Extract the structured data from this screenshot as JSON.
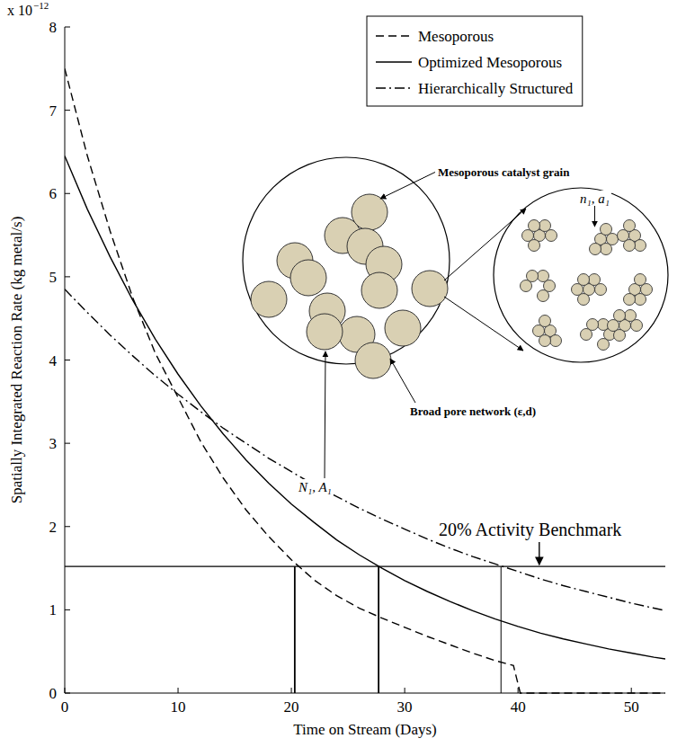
{
  "chart_data": {
    "type": "line",
    "x_label": "Time on Stream (Days)",
    "y_label": "Spatially Integrated Reaction Rate (kg metal/s)",
    "y_multiplier": {
      "base": "x 10",
      "exponent": "−12"
    },
    "xlim": [
      0,
      53
    ],
    "ylim": [
      0,
      8
    ],
    "xticks": [
      0,
      10,
      20,
      30,
      40,
      50
    ],
    "yticks": [
      0,
      1,
      2,
      3,
      4,
      5,
      6,
      7,
      8
    ],
    "grid": false,
    "legend": "upper right",
    "series": [
      {
        "name": "Mesoporous",
        "color": "#000000",
        "line_style": "dashed",
        "x": [
          0,
          2,
          4,
          6,
          8,
          10,
          12,
          14,
          16,
          18,
          20,
          22,
          24,
          26,
          28,
          30,
          32,
          34,
          36,
          38,
          39.6,
          40.2,
          53
        ],
        "values": [
          7.5,
          6.45,
          5.55,
          4.75,
          4.08,
          3.55,
          3.02,
          2.58,
          2.2,
          1.88,
          1.6,
          1.36,
          1.17,
          1.02,
          0.9,
          0.79,
          0.68,
          0.58,
          0.48,
          0.39,
          0.33,
          0,
          0
        ]
      },
      {
        "name": "Optimized Mesoporous",
        "color": "#000000",
        "line_style": "solid",
        "x": [
          0,
          2,
          4,
          6,
          8,
          10,
          12,
          14,
          16,
          18,
          20,
          22,
          24,
          26,
          28,
          30,
          32,
          34,
          36,
          38,
          40,
          42,
          44,
          46,
          48,
          50,
          52,
          53
        ],
        "values": [
          6.45,
          5.81,
          5.24,
          4.72,
          4.25,
          3.83,
          3.45,
          3.11,
          2.8,
          2.52,
          2.27,
          2.05,
          1.84,
          1.66,
          1.5,
          1.35,
          1.22,
          1.1,
          0.99,
          0.89,
          0.8,
          0.72,
          0.65,
          0.59,
          0.53,
          0.48,
          0.43,
          0.41
        ]
      },
      {
        "name": "Hierarchically Structured",
        "color": "#000000",
        "line_style": "dashdot",
        "x": [
          0,
          2,
          4,
          6,
          8,
          10,
          12,
          14,
          16,
          18,
          20,
          22,
          24,
          26,
          28,
          30,
          32,
          34,
          36,
          38,
          40,
          42,
          44,
          46,
          48,
          50,
          52,
          53
        ],
        "values": [
          4.85,
          4.57,
          4.3,
          4.05,
          3.81,
          3.59,
          3.38,
          3.18,
          3.0,
          2.82,
          2.66,
          2.5,
          2.36,
          2.22,
          2.09,
          1.97,
          1.85,
          1.74,
          1.64,
          1.55,
          1.46,
          1.37,
          1.29,
          1.22,
          1.15,
          1.08,
          1.02,
          0.99
        ]
      }
    ],
    "benchmark": {
      "label": "20% Activity Benchmark",
      "value": 1.52
    },
    "drop_lines": [
      20.3,
      27.7,
      38.5
    ],
    "annotations": [
      "Mesoporous catalyst grain",
      "n₁, a₁",
      "N₁, A₁",
      "Broad pore network (ε,d)"
    ]
  }
}
